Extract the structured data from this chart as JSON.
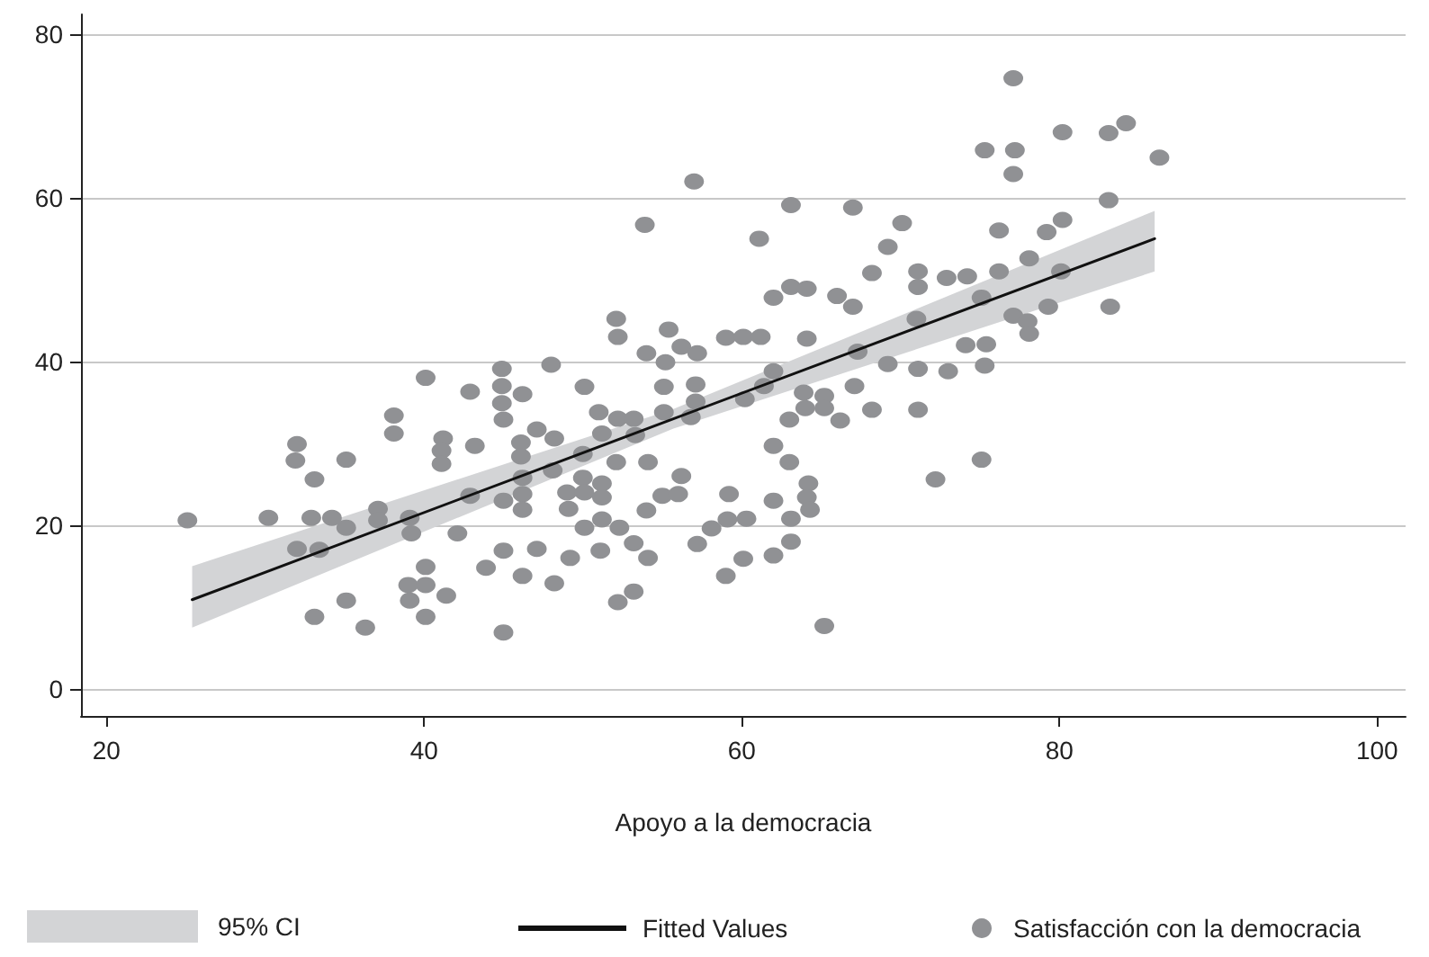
{
  "chart_data": {
    "type": "scatter",
    "xlabel": "Apoyo a la democracia",
    "xlim": [
      18.4,
      101.8
    ],
    "xticks": [
      20,
      40,
      60,
      80,
      100
    ],
    "ylim": [
      -3.3,
      82.4
    ],
    "yticks": [
      0,
      20,
      40,
      60,
      80
    ],
    "grid": "y",
    "legend": "bottom",
    "marker": "circle",
    "annotations": [
      "95% CI"
    ],
    "series": [
      {
        "name": "Fitted Values",
        "type": "line",
        "marker": "none",
        "color": "#111111",
        "x": [
          25.4,
          55.7,
          86
        ],
        "values": [
          10.9,
          33,
          55
        ],
        "lower": [
          7.5,
          31.8,
          51
        ],
        "upper": [
          15,
          34.2,
          58.4
        ]
      },
      {
        "name": "Satisfacción con la democracia",
        "color": "#909194",
        "x": [
          25.1,
          30.2,
          32.0,
          31.9,
          32.0,
          33.1,
          32.9,
          34.2,
          35.1,
          35.1,
          33.4,
          33.1,
          35.1,
          36.3,
          37.1,
          37.1,
          38.1,
          38.1,
          39.1,
          39.2,
          39.0,
          39.1,
          40.1,
          40.1,
          40.1,
          40.1,
          41.2,
          41.1,
          41.1,
          41.4,
          42.1,
          42.9,
          42.9,
          43.2,
          43.9,
          44.9,
          44.9,
          44.9,
          45.0,
          45.0,
          45.0,
          45.0,
          46.2,
          46.1,
          46.1,
          46.2,
          46.2,
          46.2,
          46.2,
          47.1,
          47.1,
          48.0,
          48.2,
          48.1,
          48.2,
          49.0,
          49.1,
          49.2,
          50.1,
          50.0,
          50.0,
          50.1,
          50.1,
          51.0,
          51.2,
          51.2,
          51.2,
          51.2,
          51.1,
          52.1,
          52.2,
          52.2,
          52.1,
          52.3,
          52.2,
          53.2,
          53.3,
          53.2,
          53.2,
          53.9,
          54.0,
          54.1,
          54.0,
          54.1,
          55.1,
          55.1,
          55.2,
          55.4,
          55.0,
          56.2,
          56.2,
          56.0,
          57.0,
          57.2,
          57.1,
          57.1,
          56.8,
          57.2,
          58.1,
          59.0,
          59.2,
          59.1,
          59.0,
          60.1,
          60.2,
          60.3,
          60.1,
          61.2,
          61.1,
          61.4,
          62.0,
          62.0,
          62.0,
          62.0,
          62.0,
          63.1,
          63.1,
          63.0,
          63.0,
          63.1,
          63.1,
          64.1,
          64.1,
          63.9,
          64.0,
          64.2,
          64.1,
          64.3,
          65.2,
          65.2,
          65.2,
          66.0,
          66.2,
          67.0,
          67.0,
          67.3,
          67.1,
          68.2,
          68.2,
          69.2,
          69.2,
          70.1,
          71.1,
          71.1,
          71.0,
          71.1,
          71.1,
          72.2,
          72.9,
          73.0,
          74.2,
          74.1,
          75.3,
          75.1,
          75.4,
          75.3,
          75.1,
          77.1,
          77.2,
          77.1,
          76.2,
          76.2,
          77.1,
          78.0,
          78.1,
          78.1,
          79.2,
          79.3,
          80.2,
          80.2,
          80.1,
          83.1,
          84.2,
          83.1,
          83.2,
          86.3
        ],
        "values": [
          20.6,
          20.9,
          29.9,
          27.9,
          17.1,
          25.6,
          20.9,
          20.9,
          28.0,
          19.7,
          17.0,
          8.8,
          10.8,
          7.5,
          22.0,
          20.6,
          33.4,
          31.2,
          20.9,
          19.0,
          12.7,
          10.8,
          38.0,
          14.9,
          12.7,
          8.8,
          30.6,
          29.1,
          27.5,
          11.4,
          19.0,
          36.3,
          23.6,
          29.7,
          14.8,
          39.1,
          37.0,
          34.9,
          32.9,
          23.0,
          16.9,
          6.9,
          36.0,
          30.1,
          28.4,
          25.8,
          23.8,
          21.9,
          13.8,
          31.7,
          17.1,
          39.6,
          30.6,
          26.7,
          12.9,
          24.0,
          22.0,
          16.0,
          36.9,
          28.7,
          25.8,
          24.0,
          19.7,
          33.8,
          31.2,
          25.1,
          23.4,
          20.7,
          16.9,
          45.2,
          43.0,
          33.0,
          27.7,
          19.7,
          10.6,
          33.0,
          31.0,
          17.8,
          11.9,
          56.7,
          41.0,
          27.7,
          21.8,
          16.0,
          36.9,
          33.8,
          39.9,
          43.9,
          23.6,
          41.8,
          26.0,
          23.8,
          62.0,
          41.0,
          37.2,
          35.1,
          33.2,
          17.7,
          19.6,
          42.9,
          23.8,
          20.7,
          13.8,
          43.0,
          35.4,
          20.8,
          15.9,
          43.0,
          55.0,
          37.0,
          47.8,
          38.8,
          29.7,
          23.0,
          16.3,
          59.1,
          49.1,
          32.9,
          27.7,
          20.8,
          18.0,
          48.9,
          42.8,
          36.2,
          34.3,
          25.1,
          23.4,
          21.9,
          35.8,
          34.3,
          7.7,
          48.0,
          32.8,
          58.8,
          46.7,
          41.2,
          37.0,
          34.1,
          50.8,
          54.0,
          39.7,
          56.9,
          51.0,
          49.1,
          45.2,
          39.1,
          34.1,
          25.6,
          50.2,
          38.8,
          50.4,
          42.0,
          65.8,
          47.8,
          42.1,
          39.5,
          28.0,
          74.6,
          65.8,
          62.9,
          56.0,
          51.0,
          45.6,
          44.9,
          43.4,
          52.6,
          55.8,
          46.7,
          68.0,
          57.3,
          51.0,
          67.9,
          69.1,
          59.7,
          46.7,
          64.9
        ]
      }
    ]
  }
}
